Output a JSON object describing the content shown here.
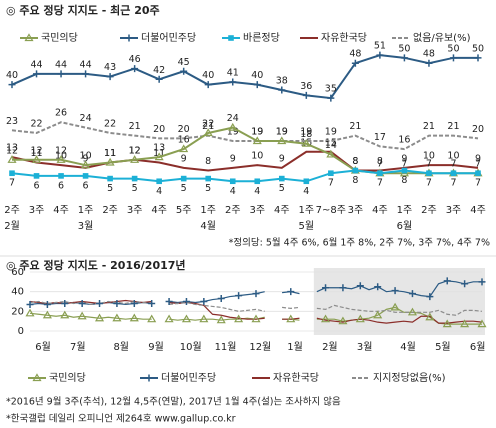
{
  "chart_data": [
    {
      "type": "line",
      "title": "◎ 주요 정당 지지도 - 최근 20주",
      "categories": [
        "2주",
        "3주",
        "4주",
        "1주",
        "2주",
        "3주",
        "4주",
        "5주",
        "1주",
        "2주",
        "3주",
        "4주",
        "1주",
        "7~8주",
        "3주",
        "4주",
        "1주",
        "2주",
        "3주",
        "4주"
      ],
      "months": [
        "2월",
        null,
        null,
        "3월",
        null,
        null,
        null,
        null,
        "4월",
        null,
        null,
        null,
        "5월",
        null,
        null,
        null,
        "6월",
        null,
        null,
        null
      ],
      "ylim": [
        0,
        60
      ],
      "series": [
        {
          "name": "국민의당",
          "color": "#8a9f52",
          "marker": "triangle",
          "label_pos": "above",
          "values": [
            12,
            12,
            12,
            10,
            11,
            12,
            13,
            16,
            22,
            24,
            19,
            19,
            18,
            14,
            8,
            7,
            7,
            7,
            7,
            7
          ]
        },
        {
          "name": "더불어민주당",
          "color": "#2c5b84",
          "marker": "plus",
          "label_pos": "above",
          "values": [
            40,
            44,
            44,
            44,
            43,
            46,
            42,
            45,
            40,
            41,
            40,
            38,
            36,
            35,
            48,
            51,
            50,
            48,
            50,
            50
          ]
        },
        {
          "name": "바른정당",
          "color": "#1cb0d6",
          "marker": "square",
          "label_pos": "below",
          "values": [
            7,
            6,
            6,
            6,
            5,
            5,
            4,
            5,
            5,
            4,
            4,
            5,
            4,
            7,
            8,
            7,
            8,
            7,
            7,
            7
          ]
        },
        {
          "name": "자유한국당",
          "color": "#8b2e2a",
          "marker": null,
          "label_pos": "above",
          "values": [
            13,
            11,
            10,
            9,
            11,
            12,
            11,
            9,
            8,
            9,
            10,
            9,
            15,
            15,
            8,
            8,
            9,
            10,
            10,
            9
          ]
        },
        {
          "name": "없음/유보(%)",
          "color": "#8c8c8c",
          "marker": null,
          "dashed": true,
          "label_pos": "above",
          "values": [
            23,
            22,
            26,
            24,
            22,
            21,
            20,
            20,
            21,
            19,
            19,
            19,
            19,
            19,
            21,
            17,
            16,
            21,
            21,
            20
          ]
        }
      ],
      "footnote": "*정의당: 5월 4주 6%, 6월 1주 8%, 2주 7%, 3주 7%, 4주 7%"
    },
    {
      "type": "line",
      "title": "◎ 주요 정당 지지도 - 2016/2017년",
      "categories": [
        "6월",
        null,
        null,
        null,
        "7월",
        null,
        null,
        null,
        null,
        "8월",
        null,
        null,
        null,
        "9월",
        null,
        null,
        null,
        "10월",
        null,
        null,
        null,
        "11월",
        null,
        null,
        null,
        "12월",
        null,
        null,
        null,
        "1월",
        null,
        null,
        null,
        "2월",
        null,
        null,
        null,
        "3월",
        null,
        null,
        null,
        null,
        "4월",
        null,
        null,
        null,
        "5월",
        null,
        null,
        null,
        "6월",
        null,
        null
      ],
      "shade_from": "2월",
      "ylim": [
        0,
        60
      ],
      "yticks": [
        0,
        20,
        40,
        60
      ],
      "series": [
        {
          "name": "국민의당",
          "color": "#8a9f52",
          "marker": "triangle",
          "values": [
            18,
            17,
            16,
            15,
            16,
            14,
            15,
            14,
            13,
            14,
            13,
            12,
            13,
            12,
            12,
            null,
            12,
            11,
            12,
            11,
            12,
            12,
            11,
            12,
            12,
            13,
            12,
            14,
            null,
            12,
            12,
            11,
            null,
            12,
            12,
            12,
            10,
            11,
            12,
            13,
            16,
            22,
            24,
            19,
            19,
            18,
            14,
            8,
            7,
            7,
            7,
            7,
            7
          ]
        },
        {
          "name": "더불어민주당",
          "color": "#2c5b84",
          "marker": "plus",
          "values": [
            27,
            28,
            27,
            28,
            28,
            29,
            28,
            27,
            28,
            29,
            28,
            27,
            28,
            29,
            28,
            null,
            30,
            29,
            30,
            29,
            30,
            32,
            33,
            35,
            36,
            37,
            38,
            40,
            null,
            39,
            40,
            38,
            null,
            40,
            44,
            44,
            44,
            43,
            46,
            42,
            45,
            40,
            41,
            40,
            38,
            36,
            35,
            48,
            51,
            50,
            48,
            50,
            50
          ]
        },
        {
          "name": "자유한국당",
          "color": "#8b2e2a",
          "marker": null,
          "values": [
            30,
            29,
            28,
            29,
            28,
            29,
            30,
            29,
            28,
            29,
            30,
            31,
            30,
            29,
            30,
            null,
            29,
            28,
            29,
            28,
            26,
            17,
            16,
            14,
            13,
            12,
            12,
            13,
            null,
            12,
            12,
            13,
            null,
            13,
            11,
            10,
            9,
            11,
            12,
            11,
            9,
            8,
            9,
            10,
            9,
            15,
            15,
            8,
            8,
            9,
            10,
            10,
            9
          ]
        },
        {
          "name": "지지정당없음(%)",
          "color": "#8c8c8c",
          "marker": null,
          "dashed": true,
          "values": [
            29,
            30,
            28,
            29,
            30,
            28,
            29,
            27,
            28,
            30,
            29,
            28,
            30,
            29,
            28,
            null,
            27,
            28,
            29,
            27,
            26,
            25,
            24,
            22,
            20,
            21,
            22,
            20,
            null,
            24,
            23,
            24,
            null,
            23,
            22,
            26,
            24,
            22,
            21,
            20,
            20,
            21,
            19,
            19,
            19,
            19,
            19,
            21,
            17,
            16,
            21,
            21,
            20
          ]
        }
      ],
      "notes": [
        "*2016년 9월 3주(추석), 12월 4,5주(연말), 2017년 1월 4주(설)는 조사하지 않음",
        "*한국갤럽 데일리 오피니언 제264호 www.gallup.co.kr"
      ]
    }
  ]
}
